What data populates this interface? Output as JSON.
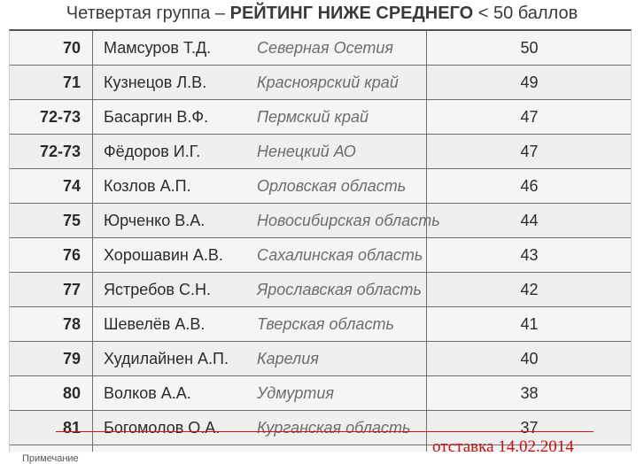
{
  "header": {
    "prefix": "Четвертая группа – ",
    "highlight": "РЕЙТИНГ НИЖЕ СРЕДНЕГО",
    "suffix": " < 50 баллов"
  },
  "rows": [
    {
      "rank": "70",
      "name": "Мамсуров Т.Д.",
      "region": "Северная Осетия",
      "score": "50"
    },
    {
      "rank": "71",
      "name": "Кузнецов Л.В.",
      "region": "Красноярский край",
      "score": "49"
    },
    {
      "rank": "72-73",
      "name": "Басаргин В.Ф.",
      "region": "Пермский край",
      "score": "47"
    },
    {
      "rank": "72-73",
      "name": "Фёдоров И.Г.",
      "region": "Ненецкий АО",
      "score": "47"
    },
    {
      "rank": "74",
      "name": "Козлов А.П.",
      "region": "Орловская область",
      "score": "46"
    },
    {
      "rank": "75",
      "name": "Юрченко В.А.",
      "region": "Новосибирская область",
      "score": "44"
    },
    {
      "rank": "76",
      "name": "Хорошавин А.В.",
      "region": "Сахалинская область",
      "score": "43"
    },
    {
      "rank": "77",
      "name": "Ястребов С.Н.",
      "region": "Ярославская область",
      "score": "42"
    },
    {
      "rank": "78",
      "name": "Шевелёв А.В.",
      "region": "Тверская область",
      "score": "41"
    },
    {
      "rank": "79",
      "name": "Худилайнен А.П.",
      "region": "Карелия",
      "score": "40"
    },
    {
      "rank": "80",
      "name": "Волков А.А.",
      "region": "Удмуртия",
      "score": "38"
    },
    {
      "rank": "81",
      "name": "Богомолов О.А.",
      "region": "Курганская область",
      "score": "37"
    }
  ],
  "annotation": {
    "text": "отставка 14.02.2014",
    "color": "#c81010"
  },
  "footnote": "Примечание"
}
